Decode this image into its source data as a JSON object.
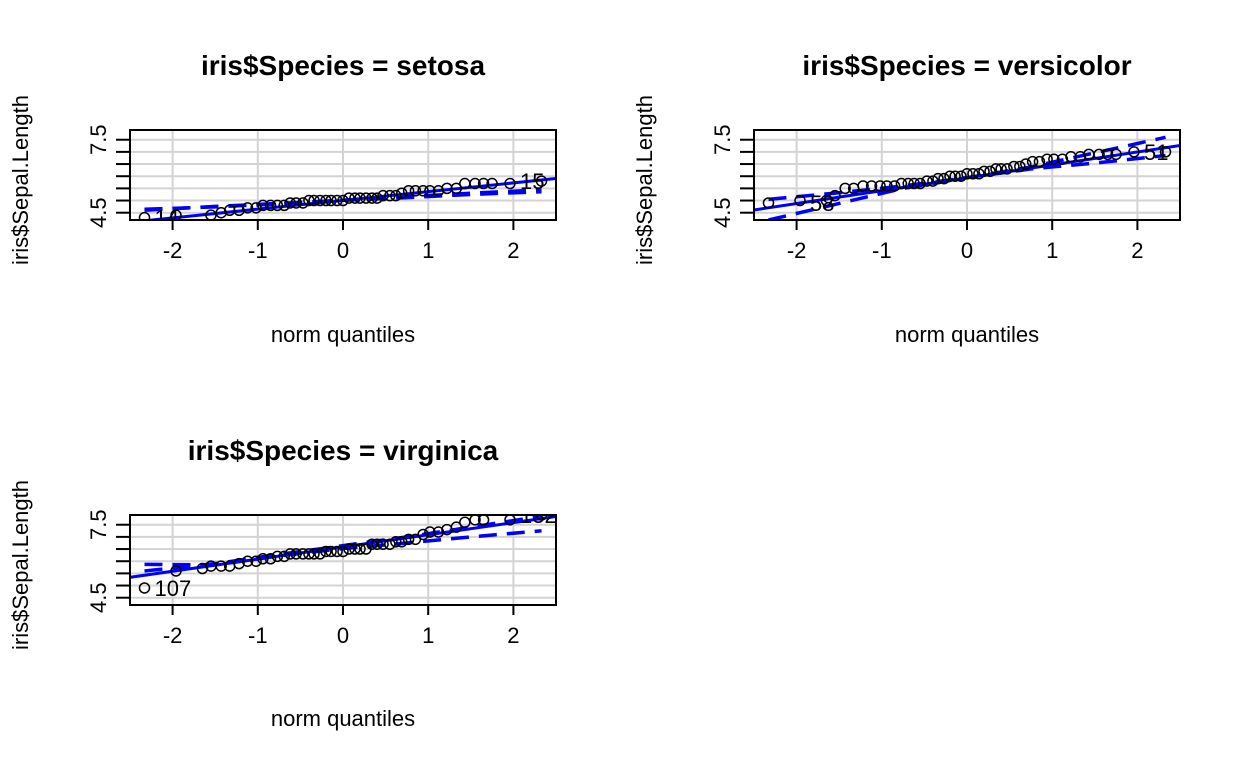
{
  "chart_data": [
    {
      "type": "scatter",
      "title": "iris$Species = setosa",
      "xlabel": "norm quantiles",
      "ylabel": "iris$Sepal.Length",
      "xlim": [
        -2.5,
        2.5
      ],
      "ylim": [
        4.2,
        7.9
      ],
      "x_ticks": [
        "-2",
        "-1",
        "0",
        "1",
        "2"
      ],
      "y_tick_labels": [
        "4.5",
        "7.5"
      ],
      "grid": true,
      "points": {
        "x": [
          -2.33,
          -1.96,
          -1.55,
          -1.43,
          -1.33,
          -1.22,
          -1.12,
          -1.02,
          -0.94,
          -0.85,
          -0.77,
          -0.69,
          -0.62,
          -0.55,
          -0.47,
          -0.4,
          -0.34,
          -0.27,
          -0.2,
          -0.14,
          -0.07,
          0.0,
          0.07,
          0.14,
          0.2,
          0.27,
          0.34,
          0.4,
          0.47,
          0.55,
          0.62,
          0.69,
          0.77,
          0.85,
          0.94,
          1.02,
          1.12,
          1.22,
          1.33,
          1.43,
          1.55,
          1.65,
          1.75,
          1.96,
          2.33
        ],
        "y": [
          4.3,
          4.4,
          4.4,
          4.5,
          4.6,
          4.6,
          4.7,
          4.7,
          4.8,
          4.8,
          4.8,
          4.8,
          4.9,
          4.9,
          4.9,
          5.0,
          5.0,
          5.0,
          5.0,
          5.0,
          5.0,
          5.0,
          5.1,
          5.1,
          5.1,
          5.1,
          5.1,
          5.1,
          5.2,
          5.2,
          5.2,
          5.3,
          5.4,
          5.4,
          5.4,
          5.4,
          5.4,
          5.5,
          5.5,
          5.7,
          5.7,
          5.7,
          5.7,
          5.7,
          5.8
        ]
      },
      "labels": [
        {
          "text": "14",
          "x": -2.33,
          "y": 4.3
        },
        {
          "text": "15",
          "x": 1.96,
          "y": 5.8
        }
      ],
      "reference_line": {
        "intercept": 5.006,
        "slope": 0.36
      },
      "envelope_lower": {
        "x": [
          -2.33,
          -1.5,
          -0.75,
          0.0,
          0.75,
          1.5,
          2.33
        ],
        "y": [
          4.64,
          4.74,
          4.86,
          5.01,
          5.12,
          5.25,
          5.36
        ]
      },
      "envelope_upper": {
        "x": [
          -2.33,
          -1.5,
          -0.75,
          0.0,
          0.75,
          1.5,
          2.33
        ],
        "y": [
          4.6,
          4.76,
          4.88,
          5.01,
          5.16,
          5.3,
          5.44
        ]
      }
    },
    {
      "type": "scatter",
      "title": "iris$Species = versicolor",
      "xlabel": "norm quantiles",
      "ylabel": "iris$Sepal.Length",
      "xlim": [
        -2.5,
        2.5
      ],
      "ylim": [
        4.2,
        7.9
      ],
      "x_ticks": [
        "-2",
        "-1",
        "0",
        "1",
        "2"
      ],
      "y_tick_labels": [
        "4.5",
        "7.5"
      ],
      "grid": true,
      "points": {
        "x": [
          -2.33,
          -1.96,
          -1.65,
          -1.55,
          -1.43,
          -1.33,
          -1.22,
          -1.12,
          -1.02,
          -0.94,
          -0.85,
          -0.77,
          -0.69,
          -0.62,
          -0.55,
          -0.47,
          -0.4,
          -0.34,
          -0.27,
          -0.2,
          -0.14,
          -0.07,
          0.0,
          0.07,
          0.14,
          0.2,
          0.27,
          0.34,
          0.4,
          0.47,
          0.55,
          0.62,
          0.69,
          0.77,
          0.85,
          0.94,
          1.02,
          1.12,
          1.22,
          1.33,
          1.43,
          1.55,
          1.65,
          1.75,
          1.96,
          2.33
        ],
        "y": [
          4.9,
          5.0,
          5.0,
          5.2,
          5.5,
          5.5,
          5.6,
          5.6,
          5.6,
          5.6,
          5.6,
          5.7,
          5.7,
          5.7,
          5.7,
          5.8,
          5.8,
          5.9,
          5.9,
          6.0,
          6.0,
          6.0,
          6.1,
          6.1,
          6.1,
          6.2,
          6.2,
          6.3,
          6.3,
          6.3,
          6.4,
          6.4,
          6.5,
          6.6,
          6.6,
          6.7,
          6.7,
          6.7,
          6.8,
          6.8,
          6.9,
          6.9,
          6.9,
          6.9,
          7.0,
          7.0
        ]
      },
      "labels": [
        {
          "text": "58",
          "x": -1.96,
          "y": 4.9
        },
        {
          "text": "51",
          "x": 1.96,
          "y": 7.0
        }
      ],
      "reference_line": {
        "intercept": 5.936,
        "slope": 0.53
      },
      "envelope_lower": {
        "x": [
          -2.33,
          -1.5,
          -0.75,
          0.0,
          0.75,
          1.5,
          2.33
        ],
        "y": [
          4.2,
          4.88,
          5.5,
          5.94,
          6.3,
          6.54,
          6.85
        ]
      },
      "envelope_upper": {
        "x": [
          -2.33,
          -1.5,
          -0.75,
          0.0,
          0.75,
          1.5,
          2.33
        ],
        "y": [
          5.05,
          5.32,
          5.6,
          5.94,
          6.38,
          6.96,
          7.6
        ]
      }
    },
    {
      "type": "scatter",
      "title": "iris$Species = virginica",
      "xlabel": "norm quantiles",
      "ylabel": "iris$Sepal.Length",
      "xlim": [
        -2.5,
        2.5
      ],
      "ylim": [
        4.2,
        7.9
      ],
      "x_ticks": [
        "-2",
        "-1",
        "0",
        "1",
        "2"
      ],
      "y_tick_labels": [
        "4.5",
        "7.5"
      ],
      "grid": true,
      "points": {
        "x": [
          -2.33,
          -1.96,
          -1.65,
          -1.55,
          -1.43,
          -1.33,
          -1.22,
          -1.12,
          -1.02,
          -0.94,
          -0.85,
          -0.77,
          -0.69,
          -0.62,
          -0.55,
          -0.47,
          -0.4,
          -0.34,
          -0.27,
          -0.2,
          -0.14,
          -0.07,
          0.0,
          0.07,
          0.14,
          0.2,
          0.27,
          0.34,
          0.4,
          0.47,
          0.55,
          0.62,
          0.69,
          0.77,
          0.85,
          0.94,
          1.02,
          1.12,
          1.22,
          1.33,
          1.43,
          1.55,
          1.65,
          1.96,
          2.33
        ],
        "y": [
          4.9,
          5.6,
          5.7,
          5.8,
          5.8,
          5.8,
          5.9,
          6.0,
          6.0,
          6.1,
          6.1,
          6.2,
          6.2,
          6.3,
          6.3,
          6.3,
          6.3,
          6.3,
          6.3,
          6.4,
          6.4,
          6.4,
          6.4,
          6.5,
          6.5,
          6.5,
          6.5,
          6.7,
          6.7,
          6.7,
          6.7,
          6.8,
          6.8,
          6.9,
          6.9,
          7.1,
          7.2,
          7.2,
          7.3,
          7.4,
          7.6,
          7.7,
          7.7,
          7.7,
          7.9
        ]
      },
      "labels": [
        {
          "text": "107",
          "x": -2.33,
          "y": 4.9
        },
        {
          "text": "132",
          "x": 1.96,
          "y": 7.9
        }
      ],
      "reference_line": {
        "intercept": 6.588,
        "slope": 0.5
      },
      "envelope_lower": {
        "x": [
          -2.33,
          -1.5,
          -0.75,
          0.0,
          0.75,
          1.5,
          2.33
        ],
        "y": [
          5.87,
          5.85,
          6.22,
          6.52,
          6.75,
          7.0,
          7.25
        ]
      },
      "envelope_upper": {
        "x": [
          -2.33,
          -1.5,
          -0.75,
          0.0,
          0.75,
          1.5,
          2.33
        ],
        "y": [
          5.6,
          5.9,
          6.28,
          6.64,
          7.0,
          7.4,
          7.85
        ]
      }
    }
  ],
  "colors": {
    "points": "#000000",
    "lines": "#0000ff",
    "grid": "#d3d3d3",
    "frame": "#000000"
  }
}
